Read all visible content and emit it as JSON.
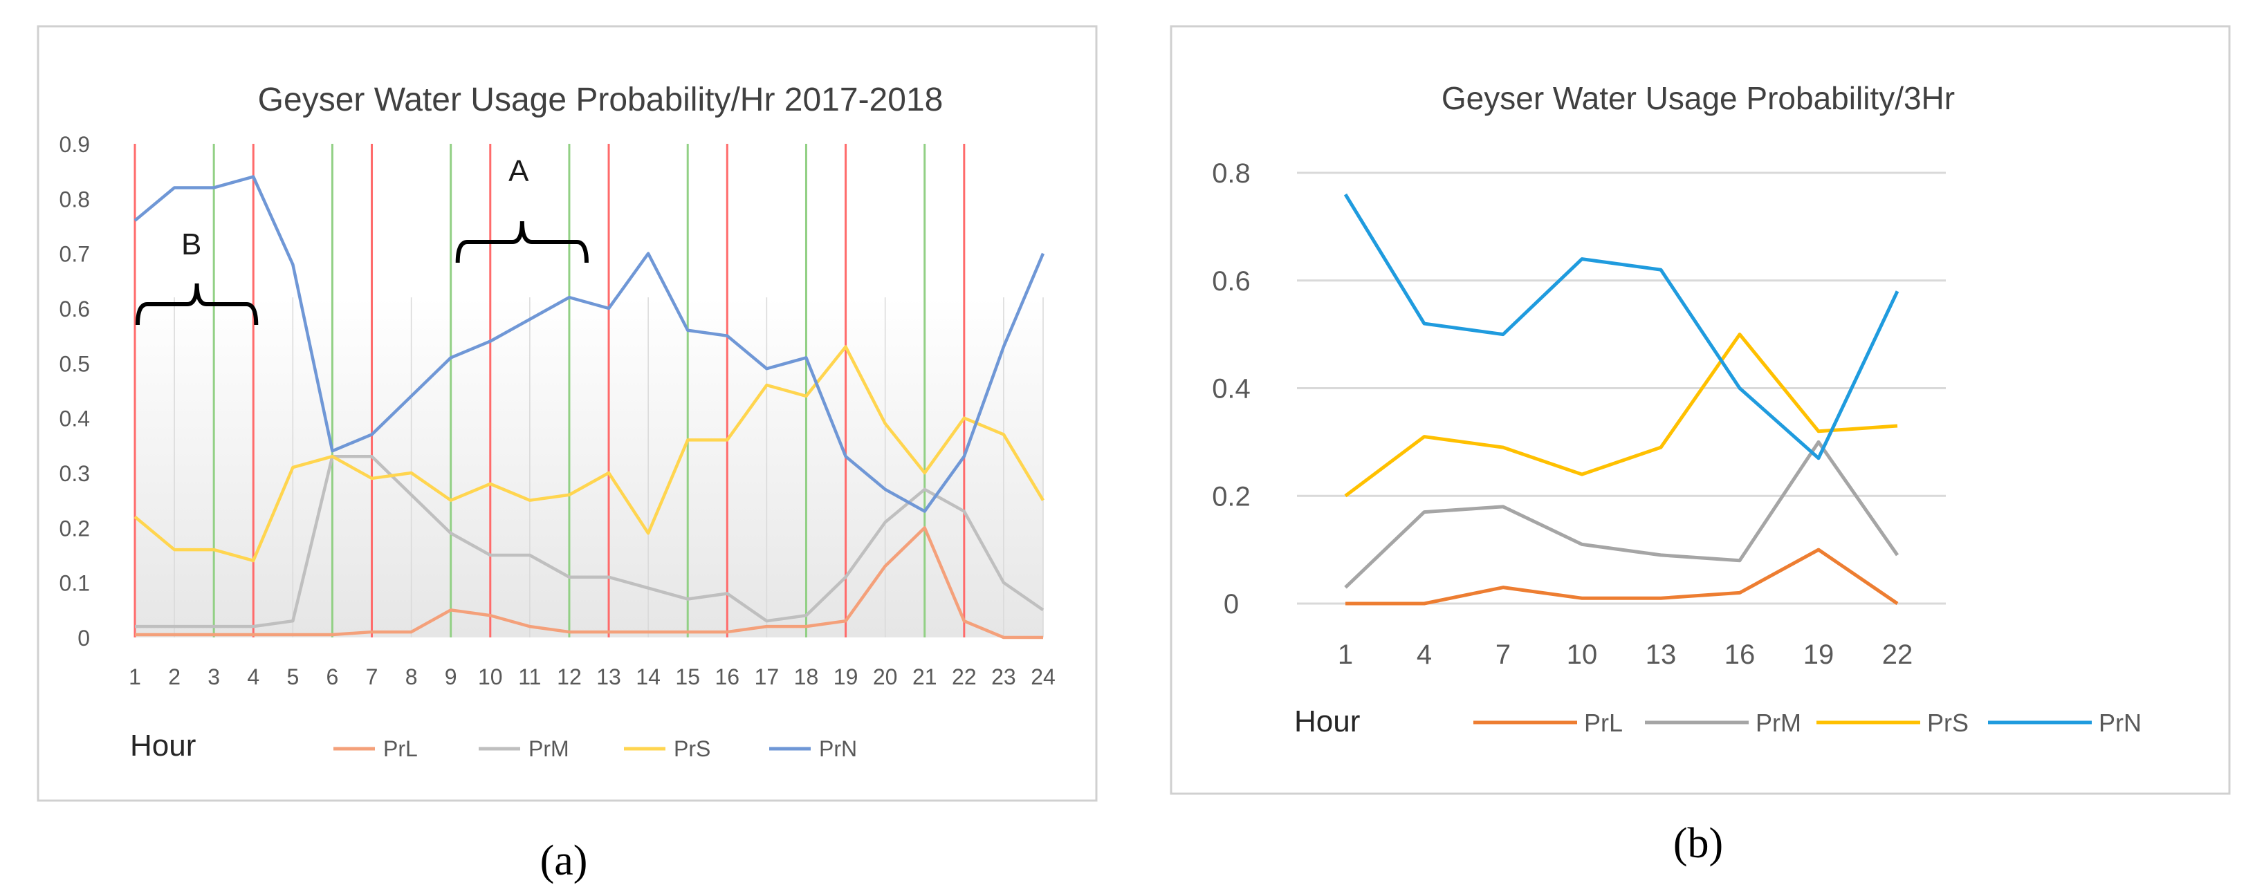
{
  "captions": [
    "(a)",
    "(b)"
  ],
  "chart_data": [
    {
      "type": "line",
      "title": "Geyser Water Usage Probability/Hr 2017-2018",
      "xlabel": "Hour",
      "ylabel": "",
      "categories": [
        "1",
        "2",
        "3",
        "4",
        "5",
        "6",
        "7",
        "8",
        "9",
        "10",
        "11",
        "12",
        "13",
        "14",
        "15",
        "16",
        "17",
        "18",
        "19",
        "20",
        "21",
        "22",
        "23",
        "24"
      ],
      "ylim": [
        0,
        0.9
      ],
      "yticks": [
        "0",
        "0.1",
        "0.2",
        "0.3",
        "0.4",
        "0.5",
        "0.6",
        "0.7",
        "0.8",
        "0.9"
      ],
      "grid": false,
      "legend_position": "bottom",
      "series": [
        {
          "name": "PrL",
          "color": "#f4a07a",
          "values": [
            0.005,
            0.005,
            0.005,
            0.005,
            0.005,
            0.005,
            0.01,
            0.01,
            0.05,
            0.04,
            0.02,
            0.01,
            0.01,
            0.01,
            0.01,
            0.01,
            0.02,
            0.02,
            0.03,
            0.13,
            0.2,
            0.03,
            0.0,
            0.0
          ]
        },
        {
          "name": "PrM",
          "color": "#bfbfbf",
          "values": [
            0.02,
            0.02,
            0.02,
            0.02,
            0.03,
            0.33,
            0.33,
            0.26,
            0.19,
            0.15,
            0.15,
            0.11,
            0.11,
            0.09,
            0.07,
            0.08,
            0.03,
            0.04,
            0.11,
            0.21,
            0.27,
            0.23,
            0.1,
            0.05
          ]
        },
        {
          "name": "PrS",
          "color": "#ffd54f",
          "values": [
            0.22,
            0.16,
            0.16,
            0.14,
            0.31,
            0.33,
            0.29,
            0.3,
            0.25,
            0.28,
            0.25,
            0.26,
            0.3,
            0.19,
            0.36,
            0.36,
            0.46,
            0.44,
            0.53,
            0.39,
            0.3,
            0.4,
            0.37,
            0.25
          ]
        },
        {
          "name": "PrN",
          "color": "#6f97d6",
          "values": [
            0.76,
            0.82,
            0.82,
            0.84,
            0.68,
            0.34,
            0.37,
            0.44,
            0.51,
            0.54,
            0.58,
            0.62,
            0.6,
            0.7,
            0.56,
            0.55,
            0.49,
            0.51,
            0.33,
            0.27,
            0.23,
            0.33,
            0.53,
            0.7
          ]
        }
      ],
      "vertical_markers": {
        "red": [
          1,
          4,
          7,
          10,
          13,
          16,
          19,
          22
        ],
        "green": [
          3,
          6,
          9,
          12,
          15,
          18,
          21
        ],
        "red_color": "#ff6b6b",
        "green_color": "#92d085"
      },
      "annotations": [
        {
          "label": "A",
          "from": 9,
          "to": 12
        },
        {
          "label": "B",
          "from": 1,
          "to": 4
        }
      ]
    },
    {
      "type": "line",
      "title": "Geyser Water Usage Probability/3Hr",
      "xlabel": "Hour",
      "ylabel": "",
      "categories": [
        "1",
        "4",
        "7",
        "10",
        "13",
        "16",
        "19",
        "22"
      ],
      "ylim": [
        0,
        0.8
      ],
      "yticks": [
        "0",
        "0.2",
        "0.4",
        "0.6",
        "0.8"
      ],
      "grid": true,
      "legend_position": "bottom",
      "series": [
        {
          "name": "PrL",
          "color": "#ed7d31",
          "values": [
            0.0,
            0.0,
            0.03,
            0.01,
            0.01,
            0.02,
            0.1,
            0.0
          ]
        },
        {
          "name": "PrM",
          "color": "#a5a5a5",
          "values": [
            0.03,
            0.17,
            0.18,
            0.11,
            0.09,
            0.08,
            0.3,
            0.09
          ]
        },
        {
          "name": "PrS",
          "color": "#ffc000",
          "values": [
            0.2,
            0.31,
            0.29,
            0.24,
            0.29,
            0.5,
            0.32,
            0.33
          ]
        },
        {
          "name": "PrN",
          "color": "#1f9bde",
          "values": [
            0.76,
            0.52,
            0.5,
            0.64,
            0.62,
            0.4,
            0.27,
            0.58
          ]
        }
      ]
    }
  ]
}
